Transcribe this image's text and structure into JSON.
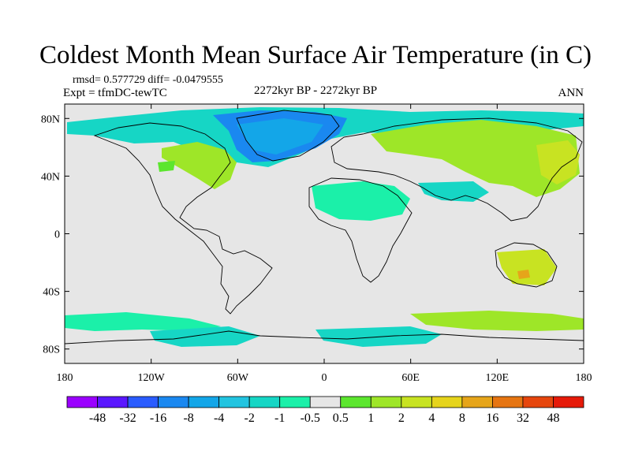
{
  "title": "Coldest Month Mean Surface Air Temperature (in C)",
  "stats": {
    "rmsd_label": "rmsd= 0.577729 diff= -0.0479555"
  },
  "experiment": "Expt = tfmDC-tewTC",
  "period": "2272kyr BP - 2272kyr BP",
  "season": "ANN",
  "map": {
    "projection": "cylindrical-equidistant",
    "lon_range": [
      -180,
      180
    ],
    "lat_range": [
      -90,
      90
    ],
    "ocean_land_color": "#e6e6e6",
    "x_ticks": [
      {
        "lon": -180,
        "label": "180"
      },
      {
        "lon": -120,
        "label": "120W"
      },
      {
        "lon": -60,
        "label": "60W"
      },
      {
        "lon": 0,
        "label": "0"
      },
      {
        "lon": 60,
        "label": "60E"
      },
      {
        "lon": 120,
        "label": "120E"
      },
      {
        "lon": 180,
        "label": "180"
      }
    ],
    "y_ticks": [
      {
        "lat": 80,
        "label": "80N"
      },
      {
        "lat": 40,
        "label": "40N"
      },
      {
        "lat": 0,
        "label": "0"
      },
      {
        "lat": -40,
        "label": "40S"
      },
      {
        "lat": -80,
        "label": "80S"
      }
    ]
  },
  "colorbar": {
    "colors": [
      "#9b00ff",
      "#5a17ff",
      "#2a5cff",
      "#1a88f0",
      "#13a6e8",
      "#22c4e0",
      "#16d6c5",
      "#1bf0a9",
      "#e6e6e6",
      "#5ce62e",
      "#9ee628",
      "#c8e322",
      "#e6d41c",
      "#e6a51a",
      "#e67512",
      "#e6460d",
      "#e61a09"
    ],
    "labels": [
      "-48",
      "-32",
      "-16",
      "-8",
      "-4",
      "-2",
      "-1",
      "-0.5",
      "0.5",
      "1",
      "2",
      "4",
      "8",
      "16",
      "32",
      "48"
    ]
  }
}
